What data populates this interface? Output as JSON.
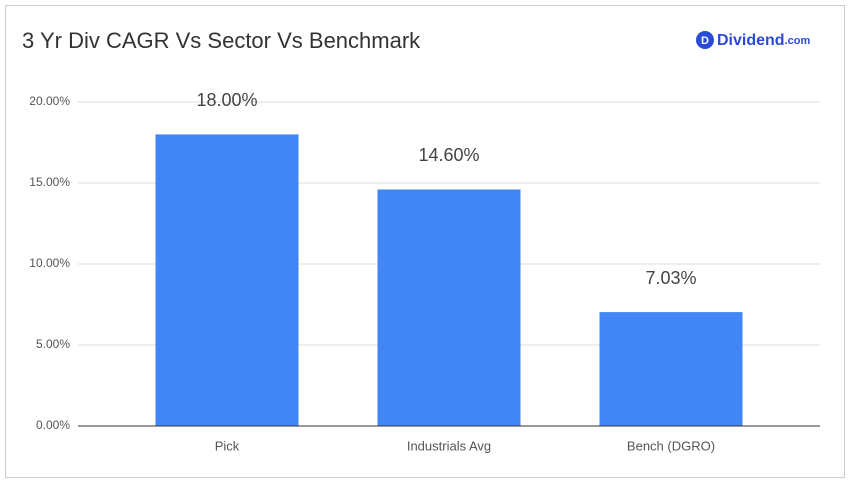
{
  "brand": {
    "icon": "D",
    "name": "Dividend",
    "suffix": ".com"
  },
  "chart_data": {
    "type": "bar",
    "title": "3 Yr Div CAGR Vs Sector Vs Benchmark",
    "categories": [
      "Pick",
      "Industrials Avg",
      "Bench (DGRO)"
    ],
    "values": [
      18,
      14.6,
      7.03
    ],
    "value_labels": [
      "18.00%",
      "14.60%",
      "7.03%"
    ],
    "color": "#4285f4",
    "ylim": [
      0,
      20
    ],
    "yticks": [
      {
        "value": 0,
        "label": "0.00%"
      },
      {
        "value": 5,
        "label": "5.00%"
      },
      {
        "value": 10,
        "label": "10.00%"
      },
      {
        "value": 15,
        "label": "15.00%"
      },
      {
        "value": 20,
        "label": "20.00%"
      }
    ],
    "grid": true
  }
}
